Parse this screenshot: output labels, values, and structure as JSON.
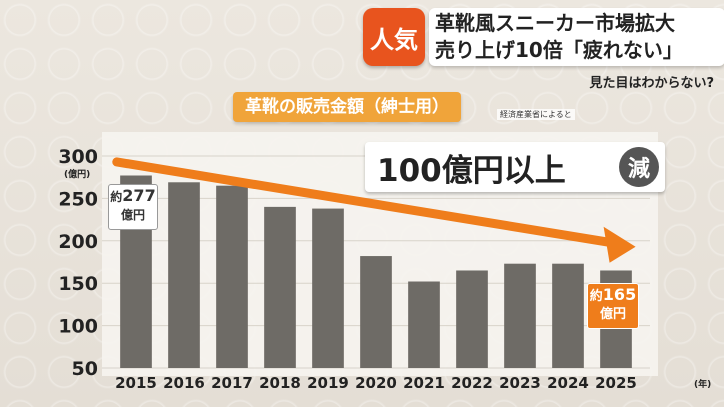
{
  "banner": {
    "badge": "人気",
    "line1": "革靴風スニーカー市場拡大",
    "line2": "売り上げ10倍「疲れない」",
    "subcaption": "見た目はわからない?"
  },
  "chart_title": "革靴の販売金額（紳士用）",
  "source": "経済産業省によると",
  "headline": {
    "text": "100億円以上",
    "badge": "減"
  },
  "callouts": {
    "start_prefix": "約",
    "start_value": "277",
    "start_unit": "億円",
    "end_prefix": "約",
    "end_value": "165",
    "end_unit": "億円"
  },
  "colors": {
    "bar": "#6e6b66",
    "arrow": "#ef7d1b",
    "accent": "#e8541e"
  },
  "chart_data": {
    "type": "bar",
    "categories": [
      "2015",
      "2016",
      "2017",
      "2018",
      "2019",
      "2020",
      "2021",
      "2022",
      "2023",
      "2024",
      "2025"
    ],
    "values": [
      277,
      269,
      265,
      240,
      238,
      182,
      152,
      165,
      173,
      173,
      165
    ],
    "ylim": [
      50,
      300
    ],
    "yticks": [
      "300",
      "250",
      "200",
      "150",
      "100",
      "50"
    ],
    "ytick_values": [
      300,
      250,
      200,
      150,
      100,
      50
    ],
    "yunit": "(億円)",
    "xunit": "(年)",
    "grid": true,
    "trend_arrow": {
      "from": "2015",
      "to": "2025"
    }
  }
}
